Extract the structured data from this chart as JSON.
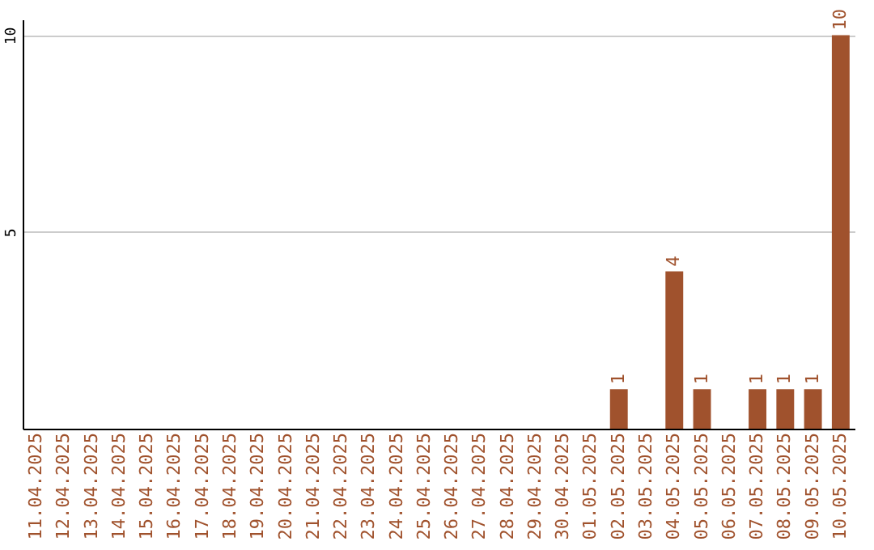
{
  "chart_data": {
    "type": "bar",
    "categories": [
      "11.04.2025",
      "12.04.2025",
      "13.04.2025",
      "14.04.2025",
      "15.04.2025",
      "16.04.2025",
      "17.04.2025",
      "18.04.2025",
      "19.04.2025",
      "20.04.2025",
      "21.04.2025",
      "22.04.2025",
      "23.04.2025",
      "24.04.2025",
      "25.04.2025",
      "26.04.2025",
      "27.04.2025",
      "28.04.2025",
      "29.04.2025",
      "30.04.2025",
      "01.05.2025",
      "02.05.2025",
      "03.05.2025",
      "04.05.2025",
      "05.05.2025",
      "06.05.2025",
      "07.05.2025",
      "08.05.2025",
      "09.05.2025",
      "10.05.2025"
    ],
    "values": [
      0,
      0,
      0,
      0,
      0,
      0,
      0,
      0,
      0,
      0,
      0,
      0,
      0,
      0,
      0,
      0,
      0,
      0,
      0,
      0,
      0,
      1,
      0,
      4,
      1,
      0,
      1,
      1,
      1,
      10
    ],
    "value_labels": [
      null,
      null,
      null,
      null,
      null,
      null,
      null,
      null,
      null,
      null,
      null,
      null,
      null,
      null,
      null,
      null,
      null,
      null,
      null,
      null,
      null,
      "1",
      null,
      "4",
      "1",
      null,
      "1",
      "1",
      "1",
      "10"
    ],
    "color": "#a0522d",
    "ylim": [
      0,
      10.4
    ],
    "yticks": [
      5,
      10
    ],
    "grid": "y"
  }
}
